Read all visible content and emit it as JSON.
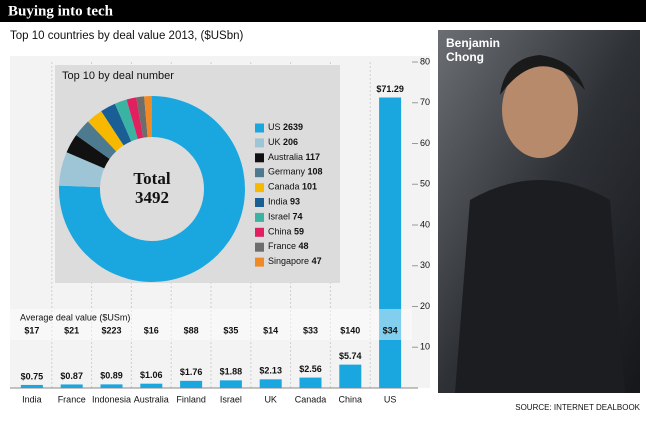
{
  "header": {
    "title": "Buying into tech"
  },
  "chart_data": [
    {
      "type": "bar",
      "title": "Top 10 countries by deal value 2013, ($USbn)",
      "categories": [
        "India",
        "France",
        "Indonesia",
        "Australia",
        "Finland",
        "Israel",
        "UK",
        "Canada",
        "China",
        "US"
      ],
      "values": [
        0.75,
        0.87,
        0.89,
        1.06,
        1.76,
        1.88,
        2.13,
        2.56,
        5.74,
        71.29
      ],
      "value_labels": [
        "$0.75",
        "$0.87",
        "$0.89",
        "$1.06",
        "$1.76",
        "$1.88",
        "$2.13",
        "$2.56",
        "$5.74",
        "$71.29"
      ],
      "color": "#1aa7e0",
      "ylim": [
        0,
        80
      ],
      "yticks": [
        10,
        20,
        30,
        40,
        50,
        60,
        70,
        80
      ],
      "average_deal_value": {
        "title": "Average deal value ($USm)",
        "values": [
          17,
          21,
          223,
          16,
          88,
          35,
          14,
          33,
          140,
          34
        ],
        "value_labels": [
          "$17",
          "$21",
          "$223",
          "$16",
          "$88",
          "$35",
          "$14",
          "$33",
          "$140",
          "$34"
        ]
      }
    },
    {
      "type": "pie",
      "title": "Top 10 by deal number",
      "donut": true,
      "categories": [
        "US",
        "UK",
        "Australia",
        "Germany",
        "Canada",
        "India",
        "Israel",
        "China",
        "France",
        "Singapore"
      ],
      "values": [
        2639,
        206,
        117,
        108,
        101,
        93,
        74,
        59,
        48,
        47
      ],
      "colors": [
        "#1aa7e0",
        "#9ec5d6",
        "#111111",
        "#4d7a8f",
        "#f7b800",
        "#1a5e96",
        "#3bb3a3",
        "#e0205f",
        "#6d6d6d",
        "#f08a24"
      ],
      "center_label": "Total",
      "total": 3492
    }
  ],
  "photo": {
    "caption": "Benjamin Chong"
  },
  "source": "SOURCE: INTERNET DEALBOOK"
}
